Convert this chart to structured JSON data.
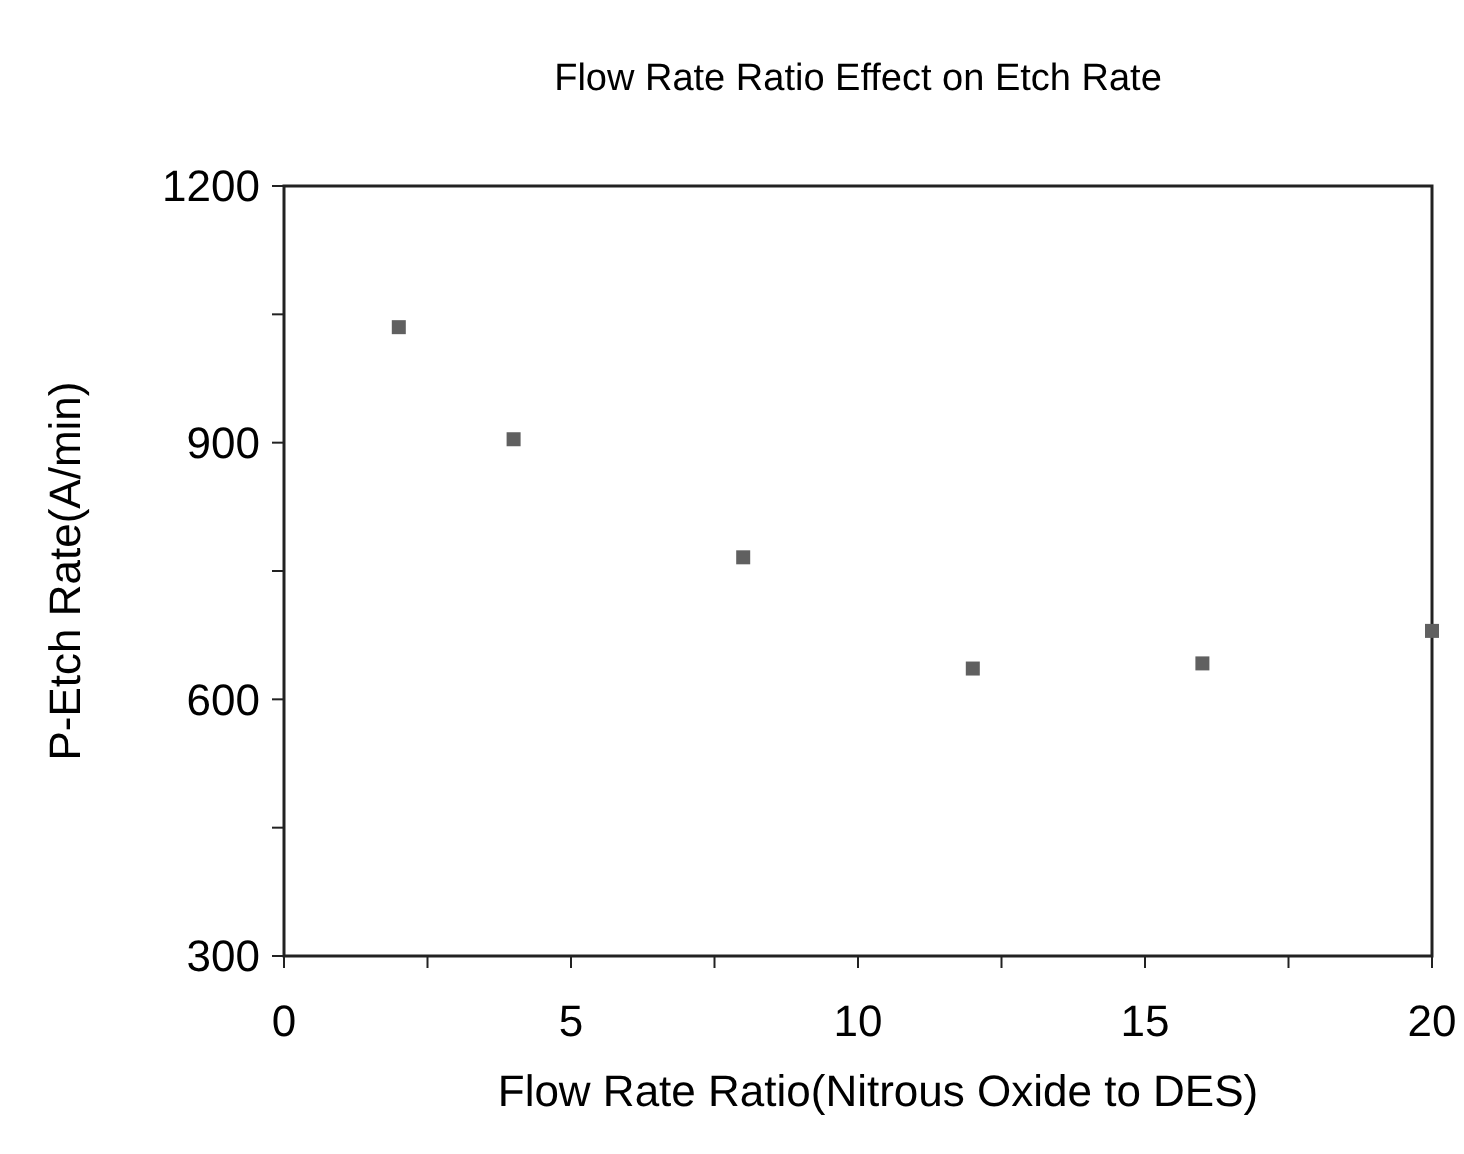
{
  "chart_data": {
    "type": "scatter",
    "title": "Flow Rate Ratio Effect on Etch Rate",
    "xlabel": "Flow Rate Ratio(Nitrous Oxide to DES)",
    "ylabel": "P-Etch Rate(A/min)",
    "x": [
      2,
      4,
      8,
      12,
      16,
      20
    ],
    "series": [
      {
        "color": "#606060",
        "values": [
          1035,
          904,
          766,
          636,
          642,
          680
        ]
      }
    ],
    "marker": "square",
    "xlim": [
      0,
      20
    ],
    "ylim": [
      300,
      1200
    ],
    "xticks": [
      0,
      {
        "value": 2.5,
        "label": null
      },
      5,
      {
        "value": 7.5,
        "label": null
      },
      10,
      {
        "value": 12.5,
        "label": null
      },
      15,
      {
        "value": 17.5,
        "label": null
      },
      20
    ],
    "yticks": [
      300,
      {
        "value": 450,
        "label": null
      },
      600,
      {
        "value": 750,
        "label": null
      },
      900,
      {
        "value": 1050,
        "label": null
      },
      1200
    ],
    "grid": false
  }
}
